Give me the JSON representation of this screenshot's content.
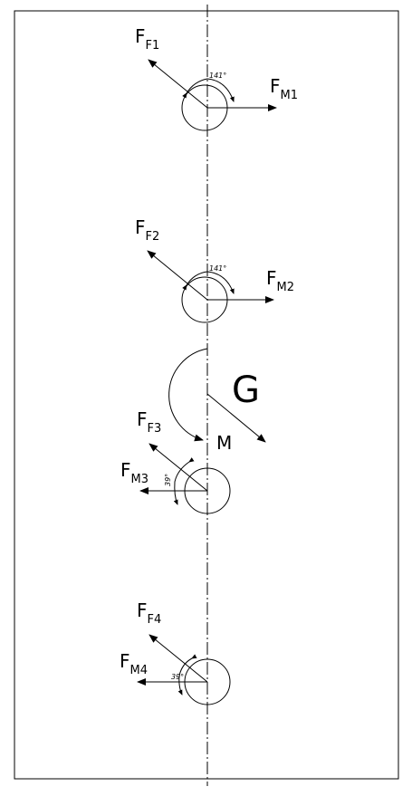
{
  "diagram": {
    "colors": {
      "line": "#000000",
      "background": "#ffffff"
    },
    "labels": {
      "ff1_main": "F",
      "ff1_sub": "F1",
      "fm1_main": "F",
      "fm1_sub": "M1",
      "ff2_main": "F",
      "ff2_sub": "F2",
      "fm2_main": "F",
      "fm2_sub": "M2",
      "ff3_main": "F",
      "ff3_sub": "F3",
      "fm3_main": "F",
      "fm3_sub": "M3",
      "ff4_main": "F",
      "ff4_sub": "F4",
      "fm4_main": "F",
      "fm4_sub": "M4",
      "g": "G",
      "m": "M"
    },
    "angles": {
      "a1": "141°",
      "a2": "141°",
      "a3": "39°",
      "a4": "39°"
    }
  }
}
